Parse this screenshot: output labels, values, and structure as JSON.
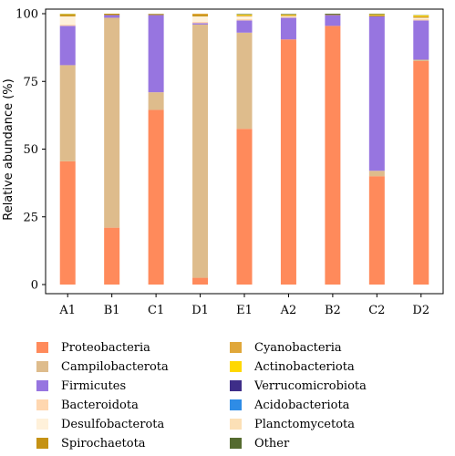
{
  "chart_data": {
    "type": "bar",
    "stacked": true,
    "orientation": "vertical",
    "title": "",
    "xlabel": "",
    "ylabel": "Relative abundance (%)",
    "ylim": [
      0,
      100
    ],
    "yticks": [
      "0",
      "25",
      "50",
      "75",
      "100"
    ],
    "grid": false,
    "legend_position": "bottom",
    "categories": [
      "A1",
      "B1",
      "C1",
      "D1",
      "E1",
      "A2",
      "B2",
      "C2",
      "D2"
    ],
    "series": [
      {
        "name": "Proteobacteria",
        "color": "#FF8A5B",
        "values": [
          45.5,
          21,
          64.5,
          2.5,
          57.5,
          90.5,
          95.5,
          40,
          82.5
        ]
      },
      {
        "name": "Campilobacterota",
        "color": "#DEBC8C",
        "values": [
          35.5,
          77.5,
          6.5,
          93.5,
          35.5,
          0,
          0,
          2,
          0.5
        ]
      },
      {
        "name": "Firmicutes",
        "color": "#9775E0",
        "values": [
          14.5,
          1,
          28.5,
          0.5,
          4.5,
          8,
          4,
          57,
          14.5
        ]
      },
      {
        "name": "Bacteroidota",
        "color": "#FFD7B0",
        "values": [
          0.5,
          0,
          0,
          0.5,
          0.5,
          0.3,
          0,
          0,
          0.5
        ]
      },
      {
        "name": "Desulfobacterota",
        "color": "#FFF1DA",
        "values": [
          3,
          0,
          0,
          2,
          1,
          0.3,
          0,
          0,
          0.5
        ]
      },
      {
        "name": "Spirochaetota",
        "color": "#C59214",
        "values": [
          0.5,
          0.5,
          0.2,
          0.5,
          0.2,
          0.2,
          0.2,
          0.4,
          0.3
        ]
      },
      {
        "name": "Cyanobacteria",
        "color": "#E0A73A",
        "values": [
          0.2,
          0,
          0.2,
          0.5,
          0.2,
          0.2,
          0,
          0.2,
          0.2
        ]
      },
      {
        "name": "Actinobacteriota",
        "color": "#FFD800",
        "values": [
          0.2,
          0,
          0,
          0,
          0.3,
          0.2,
          0,
          0.2,
          0.4
        ]
      },
      {
        "name": "Verrucomicrobiota",
        "color": "#3E2D88",
        "values": [
          0,
          0,
          0,
          0,
          0,
          0,
          0,
          0,
          0
        ]
      },
      {
        "name": "Acidobacteriota",
        "color": "#2E8CE6",
        "values": [
          0,
          0,
          0,
          0,
          0,
          0,
          0,
          0,
          0
        ]
      },
      {
        "name": "Planctomycetota",
        "color": "#FCE0B6",
        "values": [
          0,
          0,
          0,
          0,
          0,
          0,
          0,
          0,
          0
        ]
      },
      {
        "name": "Other",
        "color": "#556B2F",
        "values": [
          0.1,
          0,
          0.1,
          0,
          0.2,
          0.2,
          0.3,
          0.2,
          0.1
        ]
      }
    ],
    "legend_columns": [
      [
        "Proteobacteria",
        "Campilobacterota",
        "Firmicutes",
        "Bacteroidota",
        "Desulfobacterota",
        "Spirochaetota"
      ],
      [
        "Cyanobacteria",
        "Actinobacteriota",
        "Verrucomicrobiota",
        "Acidobacteriota",
        "Planctomycetota",
        "Other"
      ]
    ]
  }
}
